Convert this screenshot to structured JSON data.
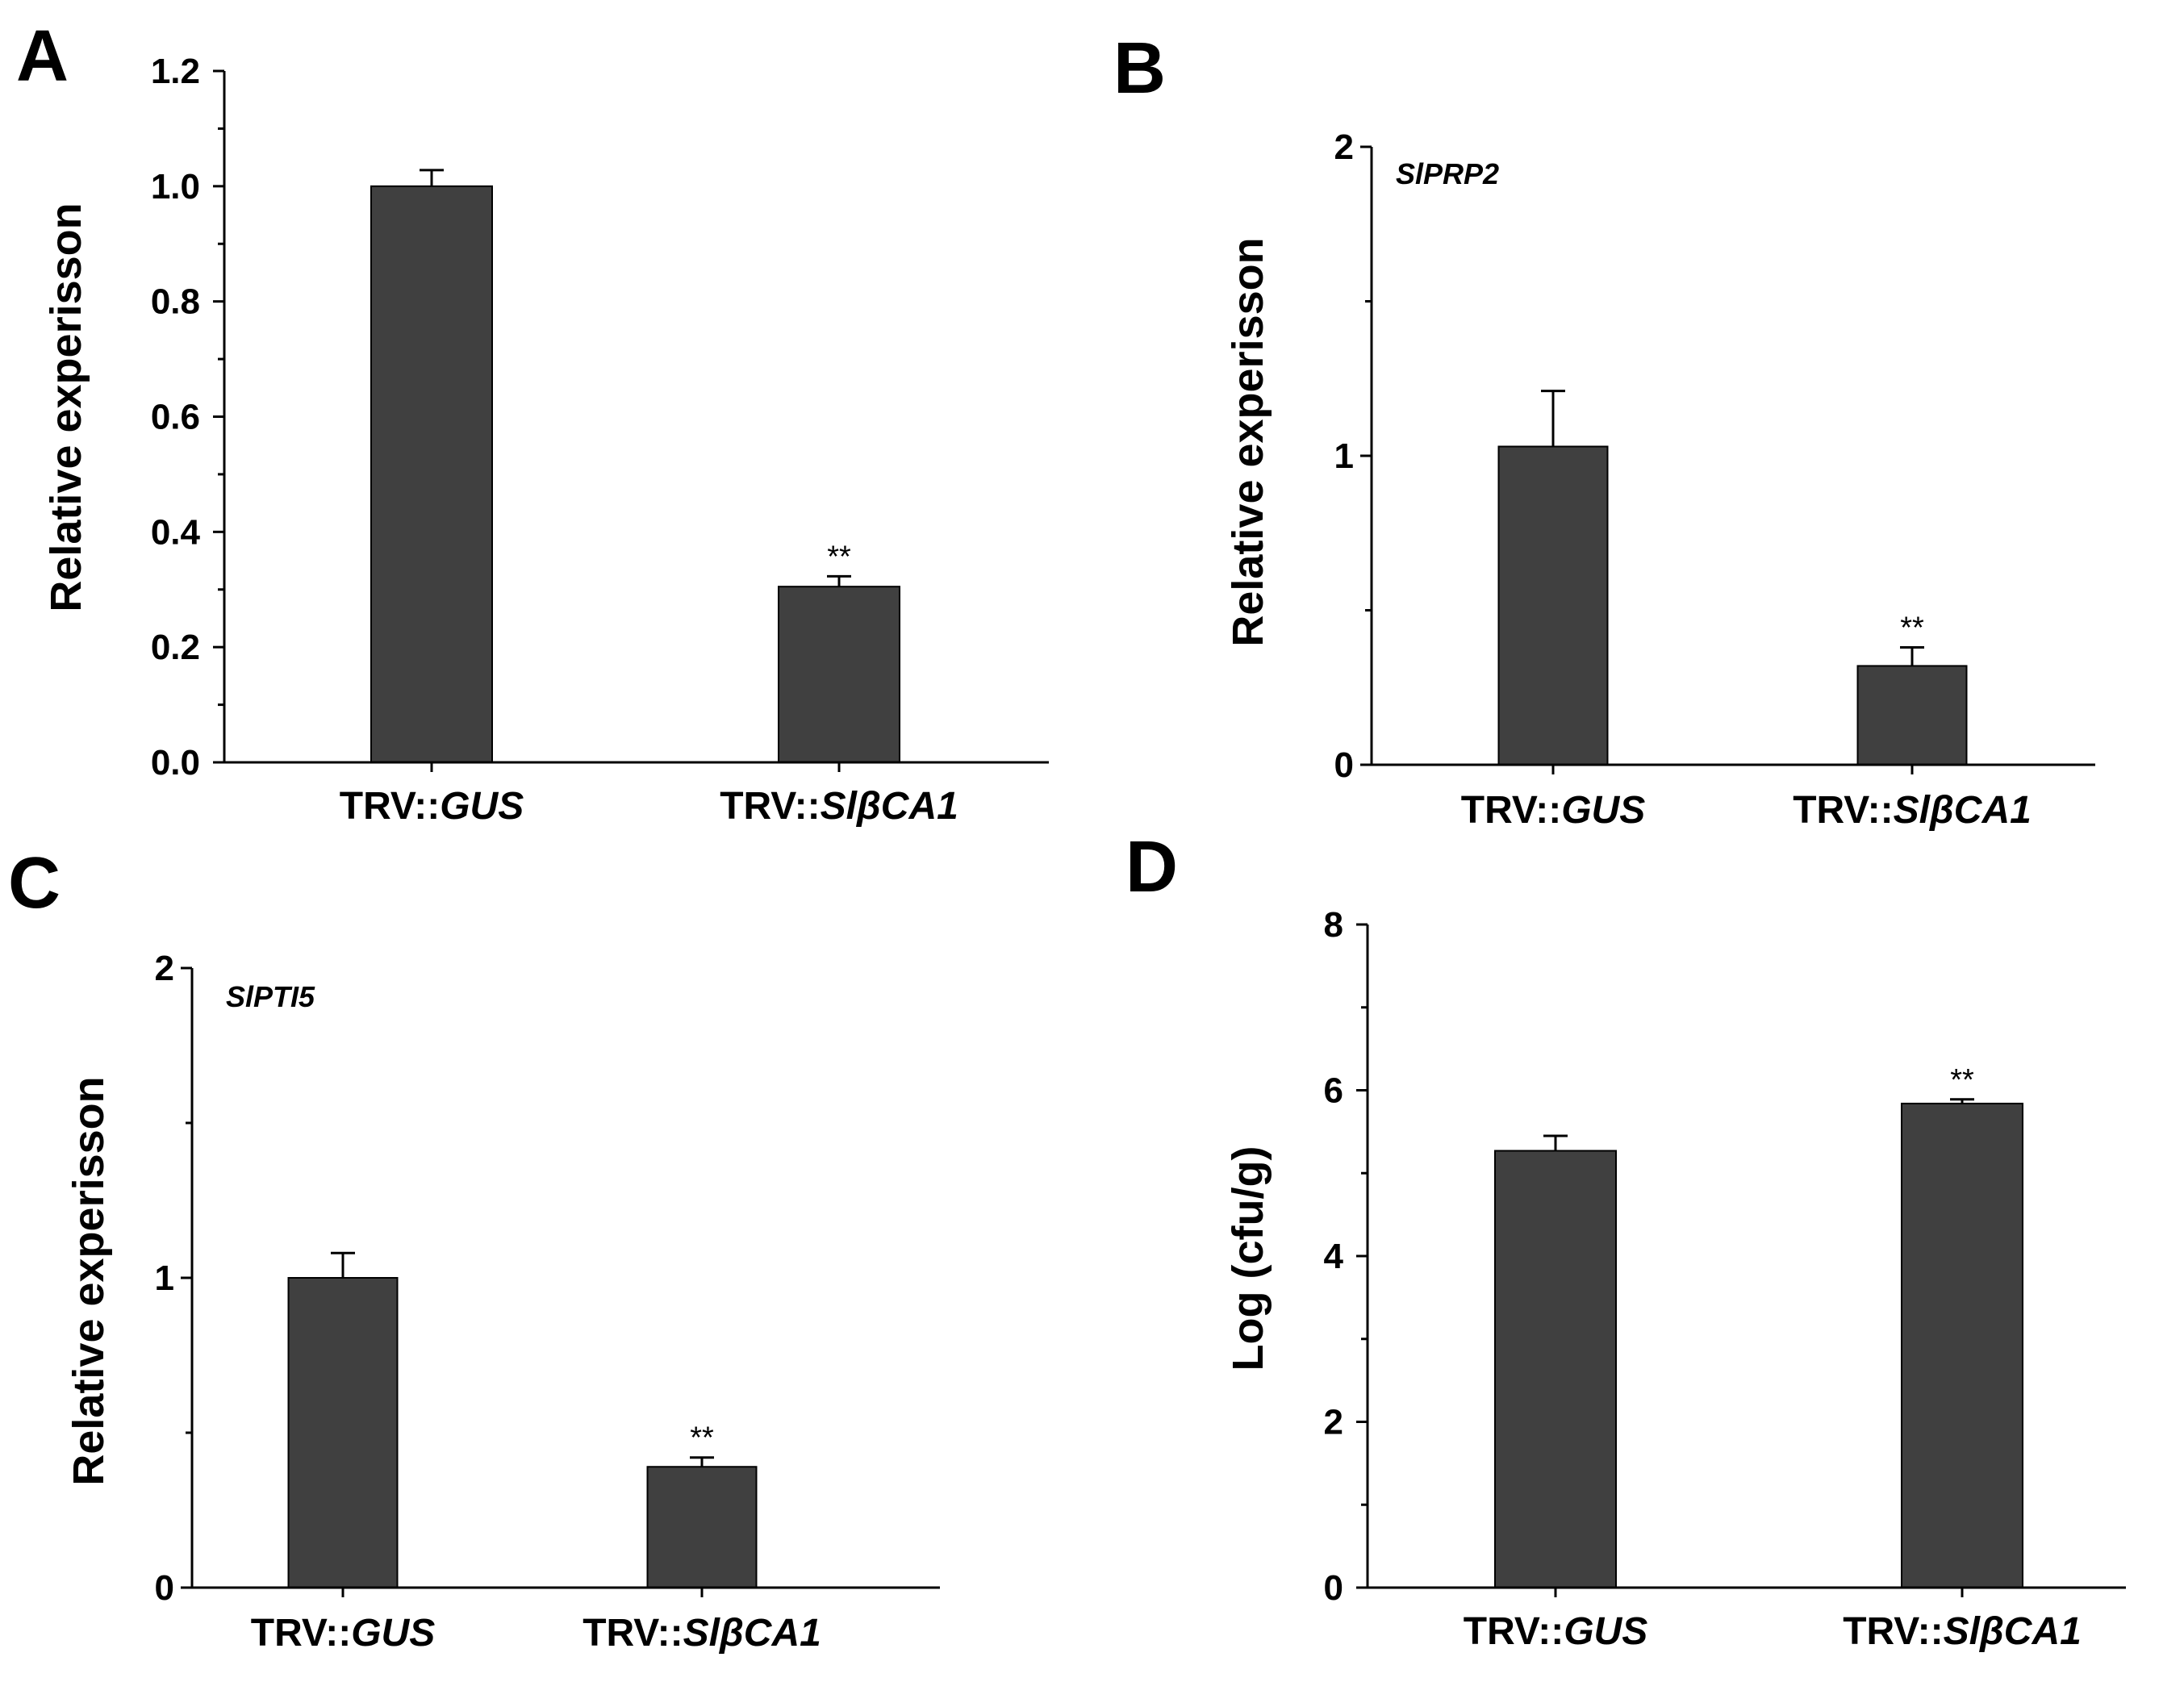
{
  "colors": {
    "bar": "#404040",
    "axis": "#000000",
    "background": "#ffffff"
  },
  "chart_data": [
    {
      "panel": "A",
      "type": "bar",
      "title": "",
      "ylabel": "Relative experisson",
      "xlabel": "",
      "categories": [
        {
          "prefix": "TRV::",
          "name": "GUS"
        },
        {
          "prefix": "TRV::",
          "name": "SlβCA1"
        }
      ],
      "values": [
        1.0,
        0.305
      ],
      "errors": [
        0.028,
        0.018
      ],
      "significance": [
        "",
        "**"
      ],
      "ylim": [
        0,
        1.2
      ],
      "major_ticks": [
        0.0,
        0.2,
        0.4,
        0.6,
        0.8,
        1.0,
        1.2
      ],
      "tick_labels": [
        "0.0",
        "0.2",
        "0.4",
        "0.6",
        "0.8",
        "1.0",
        "1.2"
      ],
      "minor_ticks": [
        0.1,
        0.3,
        0.5,
        0.7,
        0.9,
        1.1
      ],
      "annotation": "",
      "grid": false,
      "legend": "none"
    },
    {
      "panel": "B",
      "type": "bar",
      "title": "",
      "ylabel": "Relative experisson",
      "xlabel": "",
      "categories": [
        {
          "prefix": "TRV::",
          "name": "GUS"
        },
        {
          "prefix": "TRV::",
          "name": "SlβCA1"
        }
      ],
      "values": [
        1.03,
        0.32
      ],
      "errors": [
        0.18,
        0.06
      ],
      "significance": [
        "",
        "**"
      ],
      "ylim": [
        0,
        2
      ],
      "major_ticks": [
        0,
        1,
        2
      ],
      "tick_labels": [
        "0",
        "1",
        "2"
      ],
      "minor_ticks": [
        0.5,
        1.5
      ],
      "annotation": "SlPRP2",
      "grid": false,
      "legend": "none"
    },
    {
      "panel": "C",
      "type": "bar",
      "title": "",
      "ylabel": "Relative experisson",
      "xlabel": "",
      "categories": [
        {
          "prefix": "TRV::",
          "name": "GUS"
        },
        {
          "prefix": "TRV::",
          "name": "SlβCA1"
        }
      ],
      "values": [
        1.0,
        0.39
      ],
      "errors": [
        0.08,
        0.03
      ],
      "significance": [
        "",
        "**"
      ],
      "ylim": [
        0,
        2
      ],
      "major_ticks": [
        0,
        1,
        2
      ],
      "tick_labels": [
        "0",
        "1",
        "2"
      ],
      "minor_ticks": [
        0.5,
        1.5
      ],
      "annotation": "SlPTI5",
      "grid": false,
      "legend": "none"
    },
    {
      "panel": "D",
      "type": "bar",
      "title": "",
      "ylabel": "Log (cfu/g)",
      "xlabel": "",
      "categories": [
        {
          "prefix": "TRV::",
          "name": "GUS"
        },
        {
          "prefix": "TRV::",
          "name": "SlβCA1"
        }
      ],
      "values": [
        5.27,
        5.84
      ],
      "errors": [
        0.18,
        0.05
      ],
      "significance": [
        "",
        "**"
      ],
      "ylim": [
        0,
        8
      ],
      "major_ticks": [
        0,
        2,
        4,
        6,
        8
      ],
      "tick_labels": [
        "0",
        "2",
        "4",
        "6",
        "8"
      ],
      "minor_ticks": [
        1,
        3,
        5,
        7
      ],
      "annotation": "",
      "grid": false,
      "legend": "none"
    }
  ]
}
